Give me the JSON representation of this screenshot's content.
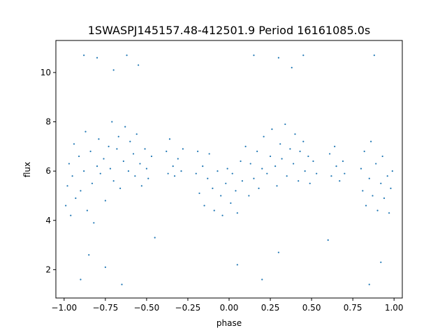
{
  "chart_data": {
    "type": "scatter",
    "title": "1SWASPJ145157.48-412501.9 Period 16161085.0s",
    "xlabel": "phase",
    "ylabel": "flux",
    "xlim": [
      -1.05,
      1.05
    ],
    "ylim": [
      0.85,
      11.3
    ],
    "xticks": [
      -1.0,
      -0.75,
      -0.5,
      -0.25,
      0.0,
      0.25,
      0.5,
      0.75,
      1.0
    ],
    "xtick_labels": [
      "−1.00",
      "−0.75",
      "−0.50",
      "−0.25",
      "0.00",
      "0.25",
      "0.50",
      "0.75",
      "1.00"
    ],
    "yticks": [
      2,
      4,
      6,
      8,
      10
    ],
    "ytick_labels": [
      "2",
      "4",
      "6",
      "8",
      "10"
    ],
    "grid": false,
    "marker_color": "#1f77b4",
    "series": [
      {
        "values": [
          [
            -0.99,
            4.6
          ],
          [
            -0.98,
            5.4
          ],
          [
            -0.97,
            6.3
          ],
          [
            -0.96,
            4.2
          ],
          [
            -0.95,
            5.8
          ],
          [
            -0.94,
            7.1
          ],
          [
            -0.93,
            4.9
          ],
          [
            -0.91,
            6.6
          ],
          [
            -0.9,
            5.2
          ],
          [
            -0.88,
            6.0
          ],
          [
            -0.87,
            7.6
          ],
          [
            -0.86,
            4.4
          ],
          [
            -0.84,
            6.8
          ],
          [
            -0.83,
            5.5
          ],
          [
            -0.82,
            3.9
          ],
          [
            -0.8,
            6.2
          ],
          [
            -0.79,
            7.3
          ],
          [
            -0.78,
            5.9
          ],
          [
            -0.76,
            6.5
          ],
          [
            -0.75,
            4.8
          ],
          [
            -0.73,
            7.0
          ],
          [
            -0.72,
            6.1
          ],
          [
            -0.71,
            8.0
          ],
          [
            -0.7,
            5.6
          ],
          [
            -0.68,
            6.9
          ],
          [
            -0.67,
            7.4
          ],
          [
            -0.66,
            5.3
          ],
          [
            -0.64,
            6.4
          ],
          [
            -0.63,
            7.8
          ],
          [
            -0.61,
            6.0
          ],
          [
            -0.6,
            7.2
          ],
          [
            -0.58,
            6.7
          ],
          [
            -0.57,
            5.8
          ],
          [
            -0.56,
            7.5
          ],
          [
            -0.54,
            6.3
          ],
          [
            -0.53,
            5.4
          ],
          [
            -0.51,
            6.9
          ],
          [
            -0.5,
            6.1
          ],
          [
            -0.49,
            5.7
          ],
          [
            -0.47,
            6.6
          ],
          [
            -0.38,
            6.8
          ],
          [
            -0.37,
            5.9
          ],
          [
            -0.36,
            7.3
          ],
          [
            -0.34,
            6.2
          ],
          [
            -0.33,
            5.8
          ],
          [
            -0.31,
            6.5
          ],
          [
            -0.29,
            6.0
          ],
          [
            -0.28,
            6.9
          ],
          [
            -0.2,
            5.9
          ],
          [
            -0.19,
            6.8
          ],
          [
            -0.18,
            5.1
          ],
          [
            -0.16,
            6.2
          ],
          [
            -0.15,
            4.6
          ],
          [
            -0.13,
            5.7
          ],
          [
            -0.12,
            6.7
          ],
          [
            -0.1,
            5.3
          ],
          [
            -0.09,
            4.4
          ],
          [
            -0.07,
            6.0
          ],
          [
            -0.05,
            5.0
          ],
          [
            -0.04,
            4.2
          ],
          [
            -0.02,
            5.5
          ],
          [
            -0.01,
            6.1
          ],
          [
            0.01,
            4.7
          ],
          [
            0.02,
            5.9
          ],
          [
            0.04,
            5.2
          ],
          [
            0.05,
            4.3
          ],
          [
            0.07,
            6.4
          ],
          [
            0.08,
            5.6
          ],
          [
            0.1,
            7.0
          ],
          [
            0.12,
            5.0
          ],
          [
            0.13,
            6.3
          ],
          [
            0.15,
            5.7
          ],
          [
            0.17,
            6.8
          ],
          [
            0.18,
            5.3
          ],
          [
            0.2,
            6.1
          ],
          [
            0.21,
            7.4
          ],
          [
            0.23,
            5.9
          ],
          [
            0.25,
            6.6
          ],
          [
            0.26,
            7.7
          ],
          [
            0.28,
            6.2
          ],
          [
            0.29,
            5.4
          ],
          [
            0.31,
            7.1
          ],
          [
            0.32,
            6.5
          ],
          [
            0.34,
            7.9
          ],
          [
            0.35,
            5.8
          ],
          [
            0.37,
            6.9
          ],
          [
            0.39,
            6.3
          ],
          [
            0.4,
            7.5
          ],
          [
            0.42,
            5.6
          ],
          [
            0.43,
            6.8
          ],
          [
            0.45,
            7.2
          ],
          [
            0.46,
            6.0
          ],
          [
            0.48,
            6.6
          ],
          [
            0.49,
            5.5
          ],
          [
            0.51,
            6.4
          ],
          [
            0.53,
            5.9
          ],
          [
            0.61,
            6.7
          ],
          [
            0.62,
            5.8
          ],
          [
            0.64,
            7.0
          ],
          [
            0.65,
            6.2
          ],
          [
            0.67,
            5.6
          ],
          [
            0.69,
            6.4
          ],
          [
            0.7,
            5.9
          ],
          [
            0.8,
            6.1
          ],
          [
            0.81,
            5.2
          ],
          [
            0.82,
            6.8
          ],
          [
            0.83,
            4.6
          ],
          [
            0.85,
            5.7
          ],
          [
            0.86,
            7.2
          ],
          [
            0.87,
            5.0
          ],
          [
            0.89,
            6.3
          ],
          [
            0.9,
            4.4
          ],
          [
            0.92,
            5.5
          ],
          [
            0.93,
            6.6
          ],
          [
            0.94,
            4.9
          ],
          [
            0.96,
            5.8
          ],
          [
            0.97,
            4.3
          ],
          [
            0.98,
            5.3
          ],
          [
            0.99,
            6.0
          ],
          [
            -0.88,
            10.7
          ],
          [
            -0.8,
            10.6
          ],
          [
            -0.7,
            10.1
          ],
          [
            -0.62,
            10.7
          ],
          [
            -0.55,
            10.3
          ],
          [
            0.15,
            10.7
          ],
          [
            0.3,
            10.6
          ],
          [
            0.38,
            10.2
          ],
          [
            0.45,
            10.7
          ],
          [
            0.88,
            10.7
          ],
          [
            -0.9,
            1.6
          ],
          [
            -0.85,
            2.6
          ],
          [
            -0.75,
            2.1
          ],
          [
            -0.65,
            1.4
          ],
          [
            -0.45,
            3.3
          ],
          [
            0.05,
            2.2
          ],
          [
            0.2,
            1.6
          ],
          [
            0.3,
            2.7
          ],
          [
            0.6,
            3.2
          ],
          [
            0.85,
            1.4
          ],
          [
            0.92,
            2.3
          ]
        ]
      }
    ]
  }
}
